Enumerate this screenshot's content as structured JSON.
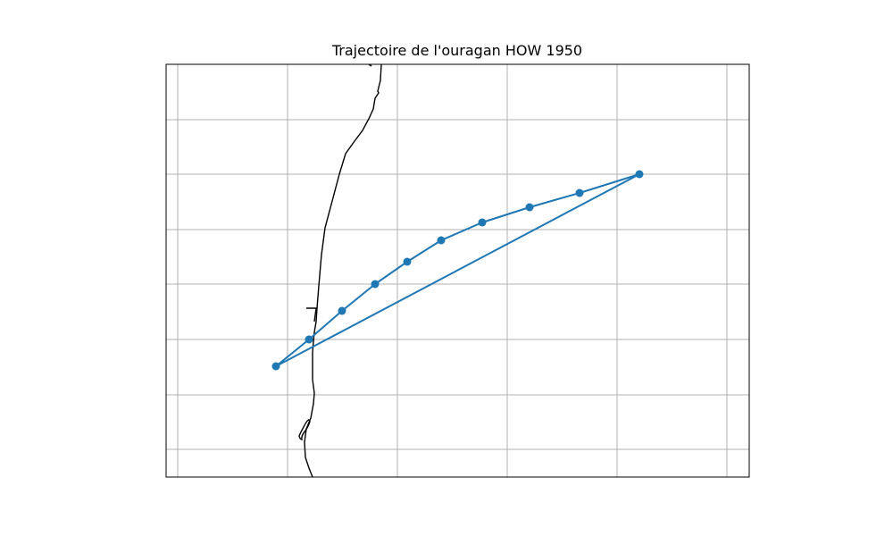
{
  "title": "Trajectoire de l'ouragan HOW 1950",
  "colors": {
    "track": "#1f77b4",
    "coastline": "#000000",
    "grid": "#b0b0b0",
    "frame": "#000000",
    "background": "#ffffff"
  },
  "map": {
    "gridlines": true,
    "tick_labels_shown": false
  },
  "track": {
    "marker": "circle",
    "closed_loop": true,
    "point_count": 10
  }
}
